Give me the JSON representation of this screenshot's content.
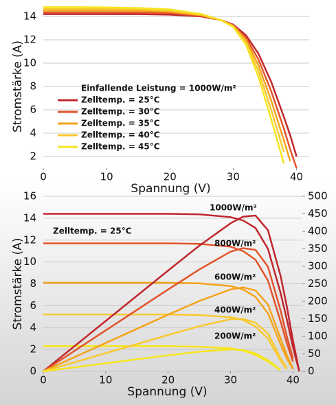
{
  "chart_data": [
    {
      "type": "line",
      "x_label": "Spannung (V)",
      "y_label": "Stromstärke (A)",
      "xlim": [
        0,
        42
      ],
      "xticks": [
        0,
        10,
        20,
        30,
        40
      ],
      "ylim": [
        1,
        15
      ],
      "yticks": [
        2,
        4,
        6,
        8,
        10,
        12,
        14
      ],
      "grid": true,
      "annotation": "Einfallende Leistung = 1000W/m²",
      "x": [
        0,
        5,
        10,
        15,
        20,
        25,
        28,
        30,
        32,
        34,
        36,
        38,
        39,
        40
      ],
      "series": [
        {
          "name": "Zelltemp. = 25°C",
          "color": "#c0272d",
          "values": [
            14.2,
            14.2,
            14.2,
            14.2,
            14.15,
            14.0,
            13.7,
            13.3,
            12.4,
            10.8,
            8.4,
            5.4,
            3.8,
            2.0
          ]
        },
        {
          "name": "Zelltemp. = 30°C",
          "color": "#e2532a",
          "values": [
            14.35,
            14.35,
            14.35,
            14.33,
            14.28,
            14.05,
            13.7,
            13.25,
            12.2,
            10.3,
            7.6,
            4.4,
            2.6,
            1.0
          ]
        },
        {
          "name": "Zelltemp. = 35°C",
          "color": "#f5a31a",
          "values": [
            14.5,
            14.5,
            14.5,
            14.48,
            14.4,
            14.1,
            13.7,
            13.2,
            12.0,
            9.8,
            6.8,
            3.4,
            1.6,
            null
          ]
        },
        {
          "name": "Zelltemp. = 40°C",
          "color": "#f8c930",
          "values": [
            14.65,
            14.65,
            14.64,
            14.6,
            14.5,
            14.15,
            13.7,
            13.15,
            11.8,
            9.3,
            6.0,
            2.4,
            null,
            null
          ]
        },
        {
          "name": "Zelltemp. = 45°C",
          "color": "#f6e51e",
          "values": [
            14.8,
            14.8,
            14.78,
            14.73,
            14.6,
            14.2,
            13.7,
            13.1,
            11.6,
            8.8,
            5.2,
            1.4,
            null,
            null
          ]
        }
      ]
    },
    {
      "type": "line",
      "x_label": "Spannung (V)",
      "y_label": "Stromstärke (A)",
      "xlim": [
        0,
        41.5
      ],
      "xticks": [
        0,
        10,
        20,
        30,
        40
      ],
      "ylim": [
        0,
        16
      ],
      "yticks": [
        0,
        2,
        4,
        6,
        8,
        10,
        12,
        14,
        16
      ],
      "y2lim": [
        0,
        500
      ],
      "y2ticks": [
        0,
        50,
        100,
        150,
        200,
        250,
        300,
        350,
        400,
        450,
        500
      ],
      "grid": true,
      "annotation": "Zelltemp. = 25°C",
      "x": [
        0,
        10,
        20,
        25,
        30,
        32,
        34,
        36,
        38,
        39,
        40,
        41
      ],
      "series": [
        {
          "name": "1000W/m²",
          "color": "#c0272d",
          "values": [
            14.4,
            14.4,
            14.4,
            14.35,
            14.1,
            13.8,
            13.1,
            11.2,
            7.2,
            4.8,
            2.2,
            0
          ]
        },
        {
          "name": "800W/m²",
          "color": "#e2532a",
          "values": [
            11.7,
            11.7,
            11.7,
            11.65,
            11.4,
            11.0,
            10.2,
            8.3,
            4.6,
            2.6,
            0.9,
            null
          ]
        },
        {
          "name": "600W/m²",
          "color": "#f5a31a",
          "values": [
            8.1,
            8.1,
            8.1,
            8.05,
            7.8,
            7.5,
            6.8,
            5.3,
            2.5,
            1.2,
            0.2,
            null
          ]
        },
        {
          "name": "400W/m²",
          "color": "#f8c930",
          "values": [
            5.2,
            5.2,
            5.2,
            5.15,
            4.95,
            4.7,
            4.1,
            3.0,
            1.0,
            0.2,
            null,
            null
          ]
        },
        {
          "name": "200W/m²",
          "color": "#f6e51e",
          "values": [
            2.3,
            2.3,
            2.3,
            2.25,
            2.1,
            1.9,
            1.5,
            0.9,
            0.1,
            null,
            null,
            null
          ]
        },
        {
          "color": "#c0272d",
          "axis": "y2",
          "values": [
            0,
            144,
            288,
            359,
            423,
            442,
            445,
            403,
            274,
            187,
            88,
            0
          ]
        },
        {
          "color": "#e2532a",
          "axis": "y2",
          "values": [
            0,
            117,
            234,
            291,
            342,
            352,
            347,
            299,
            175,
            101,
            36,
            null
          ]
        },
        {
          "color": "#f5a31a",
          "axis": "y2",
          "values": [
            0,
            81,
            162,
            201,
            234,
            240,
            231,
            191,
            95,
            47,
            8,
            null
          ]
        },
        {
          "color": "#f8c930",
          "axis": "y2",
          "values": [
            0,
            52,
            104,
            129,
            149,
            150,
            139,
            108,
            38,
            8,
            null,
            null
          ]
        },
        {
          "color": "#f6e51e",
          "axis": "y2",
          "values": [
            0,
            23,
            46,
            56,
            63,
            61,
            51,
            32,
            4,
            null,
            null,
            null
          ]
        }
      ]
    }
  ]
}
